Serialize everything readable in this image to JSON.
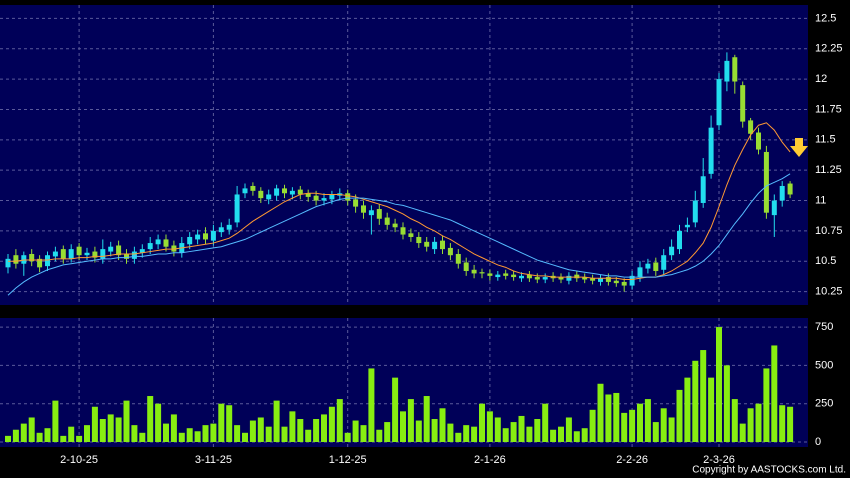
{
  "chart_data": [
    {
      "type": "candlestick",
      "up_color": "#22ddee",
      "down_color": "#99dd33",
      "open": [
        10.45,
        10.55,
        10.48,
        10.56,
        10.52,
        10.46,
        10.54,
        10.6,
        10.52,
        10.62,
        10.55,
        10.58,
        10.52,
        10.58,
        10.63,
        10.56,
        10.52,
        10.57,
        10.6,
        10.64,
        10.68,
        10.63,
        10.57,
        10.64,
        10.68,
        10.73,
        10.67,
        10.74,
        10.76,
        10.82,
        11.06,
        11.12,
        11.08,
        11.01,
        11.04,
        11.1,
        11.05,
        11.09,
        11.06,
        11.04,
        11.0,
        11.01,
        11.04,
        11.06,
        11.01,
        10.96,
        10.88,
        10.93,
        10.86,
        10.81,
        10.78,
        10.73,
        10.7,
        10.66,
        10.6,
        10.67,
        10.61,
        10.56,
        10.49,
        10.43,
        10.41,
        10.4,
        10.37,
        10.4,
        10.39,
        10.36,
        10.39,
        10.37,
        10.35,
        10.38,
        10.37,
        10.34,
        10.39,
        10.37,
        10.36,
        10.33,
        10.37,
        10.34,
        10.33,
        10.3,
        10.37,
        10.44,
        10.49,
        10.43,
        10.55,
        10.6,
        10.78,
        10.82,
        10.98,
        11.22,
        11.62,
        11.98,
        12.18,
        11.95,
        11.66,
        11.56,
        11.4,
        10.88,
        11.0,
        11.14
      ],
      "high": [
        10.56,
        10.6,
        10.58,
        10.6,
        10.55,
        10.58,
        10.62,
        10.63,
        10.64,
        10.65,
        10.61,
        10.62,
        10.68,
        10.66,
        10.67,
        10.6,
        10.62,
        10.64,
        10.7,
        10.72,
        10.72,
        10.67,
        10.7,
        10.74,
        10.76,
        10.78,
        10.8,
        10.82,
        10.85,
        11.12,
        11.14,
        11.15,
        11.11,
        11.09,
        11.13,
        11.13,
        11.11,
        11.12,
        11.09,
        11.08,
        11.06,
        11.08,
        11.1,
        11.09,
        11.05,
        11.0,
        10.96,
        10.97,
        10.9,
        10.85,
        10.82,
        10.77,
        10.74,
        10.7,
        10.7,
        10.71,
        10.65,
        10.6,
        10.53,
        10.47,
        10.44,
        10.43,
        10.42,
        10.43,
        10.42,
        10.41,
        10.42,
        10.4,
        10.4,
        10.41,
        10.4,
        10.41,
        10.42,
        10.4,
        10.39,
        10.39,
        10.4,
        10.37,
        10.36,
        10.42,
        10.5,
        10.52,
        10.53,
        10.6,
        10.68,
        10.8,
        10.86,
        11.08,
        11.35,
        11.7,
        12.05,
        12.22,
        12.2,
        11.98,
        11.68,
        11.6,
        11.45,
        11.05,
        11.16,
        11.16
      ],
      "low": [
        10.4,
        10.44,
        10.38,
        10.46,
        10.41,
        10.42,
        10.5,
        10.48,
        10.49,
        10.51,
        10.51,
        10.49,
        10.48,
        10.54,
        10.51,
        10.48,
        10.48,
        10.53,
        10.56,
        10.6,
        10.58,
        10.54,
        10.53,
        10.6,
        10.64,
        10.64,
        10.63,
        10.7,
        10.72,
        10.78,
        11.02,
        11.04,
        10.98,
        10.97,
        11.0,
        11.02,
        11.01,
        11.01,
        10.99,
        10.96,
        10.96,
        10.97,
        11.0,
        10.96,
        10.9,
        10.85,
        10.72,
        10.8,
        10.76,
        10.74,
        10.68,
        10.66,
        10.61,
        10.58,
        10.56,
        10.56,
        10.51,
        10.44,
        10.38,
        10.36,
        10.36,
        10.34,
        10.34,
        10.35,
        10.34,
        10.33,
        10.33,
        10.32,
        10.32,
        10.33,
        10.32,
        10.31,
        10.33,
        10.32,
        10.31,
        10.3,
        10.3,
        10.29,
        10.25,
        10.27,
        10.33,
        10.4,
        10.38,
        10.39,
        10.51,
        10.56,
        10.74,
        10.78,
        10.94,
        11.18,
        11.58,
        11.9,
        11.88,
        11.6,
        11.5,
        11.38,
        10.85,
        10.7,
        10.95,
        11.02
      ],
      "close": [
        10.52,
        10.48,
        10.55,
        10.5,
        10.45,
        10.55,
        10.58,
        10.52,
        10.6,
        10.55,
        10.57,
        10.53,
        10.6,
        10.62,
        10.55,
        10.52,
        10.58,
        10.6,
        10.65,
        10.68,
        10.62,
        10.58,
        10.65,
        10.7,
        10.72,
        10.68,
        10.75,
        10.78,
        10.8,
        11.05,
        11.1,
        11.08,
        11.02,
        11.05,
        11.1,
        11.06,
        11.08,
        11.05,
        11.03,
        11.0,
        11.02,
        11.05,
        11.06,
        11.0,
        10.95,
        10.9,
        10.92,
        10.85,
        10.8,
        10.78,
        10.72,
        10.7,
        10.65,
        10.62,
        10.66,
        10.6,
        10.55,
        10.48,
        10.42,
        10.4,
        10.4,
        10.38,
        10.39,
        10.38,
        10.37,
        10.38,
        10.36,
        10.35,
        10.37,
        10.36,
        10.35,
        10.38,
        10.36,
        10.35,
        10.34,
        10.36,
        10.33,
        10.32,
        10.3,
        10.38,
        10.45,
        10.48,
        10.42,
        10.55,
        10.62,
        10.75,
        10.8,
        11.0,
        11.2,
        11.6,
        12.0,
        12.15,
        11.98,
        11.65,
        11.55,
        11.42,
        10.9,
        11.0,
        11.12,
        11.05
      ],
      "lines": [
        {
          "color": "#ff9933",
          "values": [
            10.5,
            10.5,
            10.51,
            10.51,
            10.51,
            10.51,
            10.52,
            10.52,
            10.52,
            10.53,
            10.53,
            10.54,
            10.54,
            10.55,
            10.56,
            10.56,
            10.56,
            10.57,
            10.58,
            10.59,
            10.6,
            10.6,
            10.61,
            10.62,
            10.63,
            10.64,
            10.65,
            10.67,
            10.69,
            10.73,
            10.78,
            10.83,
            10.87,
            10.91,
            10.95,
            10.99,
            11.02,
            11.05,
            11.06,
            11.06,
            11.05,
            11.05,
            11.05,
            11.04,
            11.03,
            11.01,
            10.99,
            10.97,
            10.95,
            10.92,
            10.89,
            10.85,
            10.82,
            10.78,
            10.75,
            10.71,
            10.68,
            10.64,
            10.6,
            10.56,
            10.53,
            10.5,
            10.47,
            10.45,
            10.42,
            10.4,
            10.39,
            10.38,
            10.38,
            10.37,
            10.37,
            10.37,
            10.37,
            10.37,
            10.36,
            10.36,
            10.36,
            10.36,
            10.35,
            10.35,
            10.36,
            10.37,
            10.37,
            10.39,
            10.42,
            10.46,
            10.5,
            10.57,
            10.65,
            10.78,
            10.95,
            11.13,
            11.29,
            11.42,
            11.54,
            11.62,
            11.64,
            11.58,
            11.48,
            11.4
          ]
        },
        {
          "color": "#55bbff",
          "values": [
            10.22,
            10.28,
            10.33,
            10.37,
            10.4,
            10.43,
            10.45,
            10.47,
            10.48,
            10.49,
            10.5,
            10.51,
            10.52,
            10.52,
            10.53,
            10.53,
            10.54,
            10.54,
            10.55,
            10.56,
            10.56,
            10.57,
            10.57,
            10.58,
            10.59,
            10.6,
            10.61,
            10.62,
            10.64,
            10.66,
            10.68,
            10.71,
            10.74,
            10.77,
            10.8,
            10.83,
            10.86,
            10.89,
            10.92,
            10.95,
            10.97,
            10.99,
            11.01,
            11.02,
            11.02,
            11.02,
            11.01,
            11.0,
            10.99,
            10.97,
            10.96,
            10.94,
            10.92,
            10.9,
            10.88,
            10.86,
            10.84,
            10.81,
            10.78,
            10.75,
            10.72,
            10.69,
            10.66,
            10.63,
            10.6,
            10.57,
            10.54,
            10.51,
            10.49,
            10.47,
            10.45,
            10.43,
            10.42,
            10.41,
            10.4,
            10.39,
            10.38,
            10.38,
            10.37,
            10.37,
            10.37,
            10.37,
            10.37,
            10.38,
            10.39,
            10.41,
            10.43,
            10.46,
            10.5,
            10.56,
            10.63,
            10.72,
            10.81,
            10.89,
            10.98,
            11.06,
            11.12,
            11.15,
            11.18,
            11.22
          ]
        }
      ],
      "ylim": [
        10.14,
        12.61
      ],
      "yticks": [
        10.25,
        10.5,
        10.75,
        11,
        11.25,
        11.5,
        11.75,
        12,
        12.25,
        12.5
      ],
      "grid": true
    },
    {
      "type": "bar",
      "color": "#88ee11",
      "categories": [
        null,
        null,
        null,
        null,
        null,
        null,
        null,
        null,
        null,
        "2-10-25",
        null,
        null,
        null,
        null,
        null,
        null,
        null,
        null,
        null,
        null,
        null,
        null,
        null,
        null,
        null,
        null,
        "3-11-25",
        null,
        null,
        null,
        null,
        null,
        null,
        null,
        null,
        null,
        null,
        null,
        null,
        null,
        null,
        null,
        null,
        "1-12-25",
        null,
        null,
        null,
        null,
        null,
        null,
        null,
        null,
        null,
        null,
        null,
        null,
        null,
        null,
        null,
        null,
        null,
        "2-1-26",
        null,
        null,
        null,
        null,
        null,
        null,
        null,
        null,
        null,
        null,
        null,
        null,
        null,
        null,
        null,
        null,
        null,
        "2-2-26",
        null,
        null,
        null,
        null,
        null,
        null,
        null,
        null,
        null,
        null,
        "2-3-26",
        null,
        null,
        null,
        null,
        null,
        null,
        null,
        null,
        null
      ],
      "values": [
        40,
        80,
        120,
        160,
        60,
        90,
        270,
        40,
        100,
        40,
        110,
        230,
        150,
        180,
        160,
        270,
        110,
        60,
        300,
        250,
        120,
        180,
        60,
        90,
        70,
        110,
        120,
        250,
        240,
        110,
        60,
        140,
        160,
        100,
        270,
        100,
        200,
        150,
        80,
        150,
        180,
        230,
        280,
        60,
        140,
        110,
        480,
        80,
        130,
        420,
        200,
        280,
        140,
        300,
        150,
        220,
        120,
        60,
        110,
        100,
        250,
        200,
        160,
        90,
        130,
        170,
        100,
        150,
        250,
        80,
        100,
        160,
        70,
        90,
        210,
        380,
        310,
        320,
        190,
        210,
        250,
        280,
        130,
        220,
        160,
        340,
        420,
        530,
        600,
        420,
        750,
        500,
        280,
        120,
        220,
        250,
        480,
        630,
        240,
        230
      ],
      "ylim": [
        0,
        800
      ],
      "yticks": [
        0,
        250,
        500,
        750
      ],
      "grid": true
    }
  ],
  "footer": "Copyright by AASTOCKS.com Ltd."
}
